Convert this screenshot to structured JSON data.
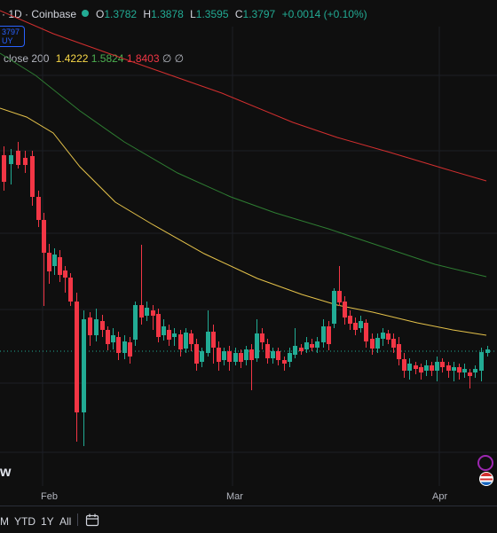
{
  "header": {
    "title": "· 1D · Coinbase",
    "ohlc": {
      "o_label": "O",
      "o": "1.3782",
      "h_label": "H",
      "h": "1.3878",
      "l_label": "L",
      "l": "1.3595",
      "c_label": "C",
      "c": "1.3797",
      "change": "+0.0014 (+0.10%)"
    }
  },
  "trade": {
    "price": "3797",
    "side": "UY"
  },
  "ma": {
    "label": "close 200",
    "v1": "1.4222",
    "v2": "1.5824",
    "v3": "1.8403",
    "null1": "∅",
    "null2": "∅"
  },
  "colors": {
    "up": "#22ab94",
    "down": "#f23645",
    "ma_yellow": "#f7d747",
    "ma_green": "#2e7d32",
    "ma_red": "#d32f2f"
  },
  "x_axis": {
    "labels": [
      "Feb",
      "Mar",
      "Apr"
    ]
  },
  "timeframes": [
    "M",
    "YTD",
    "1Y",
    "All"
  ],
  "watermark": "w",
  "icons": [
    "calendar-icon",
    "theme-icon",
    "flag-icon"
  ]
}
